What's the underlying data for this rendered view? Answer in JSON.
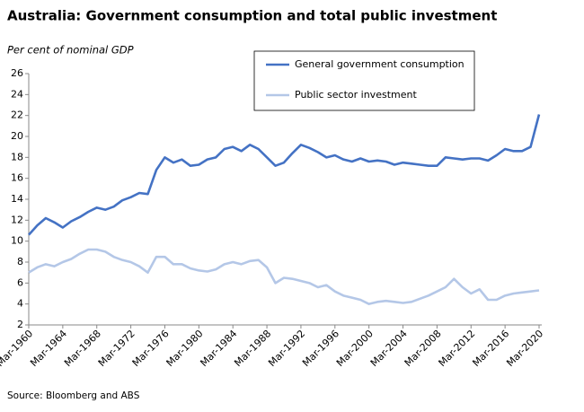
{
  "chart_data": {
    "type": "line",
    "title": "Australia: Government consumption and total public investment",
    "y_label": "Per cent of nominal GDP",
    "source": "Source: Bloomberg and ABS",
    "x": [
      "Mar-1960",
      "Mar-1961",
      "Mar-1962",
      "Mar-1963",
      "Mar-1964",
      "Mar-1965",
      "Mar-1966",
      "Mar-1967",
      "Mar-1968",
      "Mar-1969",
      "Mar-1970",
      "Mar-1971",
      "Mar-1972",
      "Mar-1973",
      "Mar-1974",
      "Mar-1975",
      "Mar-1976",
      "Mar-1977",
      "Mar-1978",
      "Mar-1979",
      "Mar-1980",
      "Mar-1981",
      "Mar-1982",
      "Mar-1983",
      "Mar-1984",
      "Mar-1985",
      "Mar-1986",
      "Mar-1987",
      "Mar-1988",
      "Mar-1989",
      "Mar-1990",
      "Mar-1991",
      "Mar-1992",
      "Mar-1993",
      "Mar-1994",
      "Mar-1995",
      "Mar-1996",
      "Mar-1997",
      "Mar-1998",
      "Mar-1999",
      "Mar-2000",
      "Mar-2001",
      "Mar-2002",
      "Mar-2003",
      "Mar-2004",
      "Mar-2005",
      "Mar-2006",
      "Mar-2007",
      "Mar-2008",
      "Mar-2009",
      "Mar-2010",
      "Mar-2011",
      "Mar-2012",
      "Mar-2013",
      "Mar-2014",
      "Mar-2015",
      "Mar-2016",
      "Mar-2017",
      "Mar-2018",
      "Mar-2019",
      "Mar-2020"
    ],
    "xticks": [
      "Mar-1960",
      "Mar-1964",
      "Mar-1968",
      "Mar-1972",
      "Mar-1976",
      "Mar-1980",
      "Mar-1984",
      "Mar-1988",
      "Mar-1992",
      "Mar-1996",
      "Mar-2000",
      "Mar-2004",
      "Mar-2008",
      "Mar-2012",
      "Mar-2016",
      "Mar-2020"
    ],
    "series": [
      {
        "name": "General government consumption",
        "color": "#4472c4",
        "values": [
          10.6,
          11.5,
          12.2,
          11.8,
          11.3,
          11.9,
          12.3,
          12.8,
          13.2,
          13.0,
          13.3,
          13.9,
          14.2,
          14.6,
          14.5,
          16.8,
          18.0,
          17.5,
          17.8,
          17.2,
          17.3,
          17.8,
          18.0,
          18.8,
          19.0,
          18.6,
          19.2,
          18.8,
          18.0,
          17.2,
          17.5,
          18.4,
          19.2,
          18.9,
          18.5,
          18.0,
          18.2,
          17.8,
          17.6,
          17.9,
          17.6,
          17.7,
          17.6,
          17.3,
          17.5,
          17.4,
          17.3,
          17.2,
          17.2,
          18.0,
          17.9,
          17.8,
          17.9,
          17.9,
          17.7,
          18.2,
          18.8,
          18.6,
          18.6,
          19.0,
          22.1
        ]
      },
      {
        "name": "Public sector investment",
        "color": "#b4c7e7",
        "values": [
          7.0,
          7.5,
          7.8,
          7.6,
          8.0,
          8.3,
          8.8,
          9.2,
          9.2,
          9.0,
          8.5,
          8.2,
          8.0,
          7.6,
          7.0,
          8.5,
          8.5,
          7.8,
          7.8,
          7.4,
          7.2,
          7.1,
          7.3,
          7.8,
          8.0,
          7.8,
          8.1,
          8.2,
          7.5,
          6.0,
          6.5,
          6.4,
          6.2,
          6.0,
          5.6,
          5.8,
          5.2,
          4.8,
          4.6,
          4.4,
          4.0,
          4.2,
          4.3,
          4.2,
          4.1,
          4.2,
          4.5,
          4.8,
          5.2,
          5.6,
          6.4,
          5.6,
          5.0,
          5.4,
          4.4,
          4.4,
          4.8,
          5.0,
          5.1,
          5.2,
          5.3
        ]
      }
    ],
    "ylim": [
      2,
      26
    ],
    "yticks": [
      2,
      4,
      6,
      8,
      10,
      12,
      14,
      16,
      18,
      20,
      22,
      24,
      26
    ],
    "grid": false
  }
}
